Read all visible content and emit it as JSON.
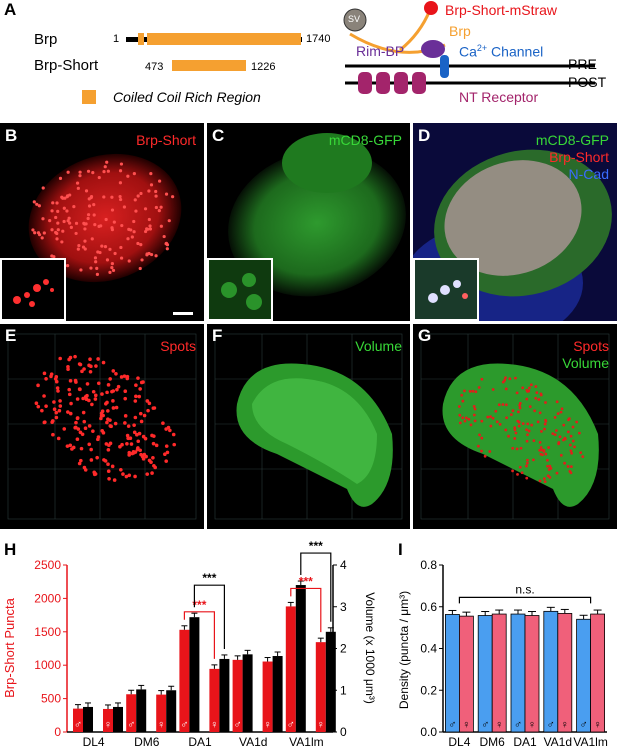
{
  "panelA": {
    "letter": "A",
    "brp_label": "Brp",
    "brp_start": "1",
    "brp_end": "1740",
    "short_label": "Brp-Short",
    "short_start": "473",
    "short_end": "1226",
    "legend_label": "Coiled Coil Rich Region",
    "sv": "SV",
    "mstraw": "Brp-Short-mStraw",
    "brp_syn": "Brp",
    "rimbp": "Rim-BP",
    "ca_prefix": "Ca",
    "ca_sup": "2+",
    "ca_suffix": " Channel",
    "pre": "PRE",
    "post": "POST",
    "ntr": "NT Receptor",
    "orange": "#f5a030",
    "purple": "#6a2f98",
    "blue": "#1a63c6",
    "red": "#e8141a",
    "maroon": "#a3246b"
  },
  "micro": {
    "B": {
      "letter": "B",
      "labels": [
        "Brp-Short"
      ],
      "colors": [
        "#ff2a2a"
      ]
    },
    "C": {
      "letter": "C",
      "labels": [
        "mCD8-GFP"
      ],
      "colors": [
        "#38d838"
      ]
    },
    "D": {
      "letter": "D",
      "labels": [
        "mCD8-GFP",
        "Brp-Short",
        "N-Cad"
      ],
      "colors": [
        "#38d838",
        "#ff2a2a",
        "#3a6cff"
      ]
    },
    "E": {
      "letter": "E",
      "labels": [
        "Spots"
      ],
      "colors": [
        "#ff2a2a"
      ]
    },
    "F": {
      "letter": "F",
      "labels": [
        "Volume"
      ],
      "colors": [
        "#38d838"
      ]
    },
    "G": {
      "letter": "G",
      "labels": [
        "Spots",
        "Volume"
      ],
      "colors": [
        "#ff2a2a",
        "#38d838"
      ]
    }
  },
  "chart_data": [
    {
      "panel": "H",
      "type": "bar",
      "categories": [
        "DL4",
        "DM6",
        "DA1",
        "VA1d",
        "VA1lm"
      ],
      "ylabel": "Brp-Short Puncta",
      "y2label": "Volume (x 1000 μm³)",
      "ylim": [
        0,
        2500
      ],
      "y2lim": [
        0,
        4
      ],
      "yticks": [
        "0",
        "500",
        "1000",
        "1500",
        "2000",
        "2500"
      ],
      "y2ticks": [
        "0",
        "1",
        "2",
        "3",
        "4"
      ],
      "sexes": [
        "♂",
        "♀"
      ],
      "series": [
        {
          "name": "Brp-Short Puncta",
          "color": "#e8141a",
          "axis": "left",
          "values_male": [
            350,
            565,
            1530,
            1080,
            1880
          ],
          "values_female": [
            345,
            560,
            945,
            1055,
            1345
          ]
        },
        {
          "name": "Volume",
          "color": "#000000",
          "axis": "right",
          "values_male": [
            0.6,
            1.02,
            2.75,
            1.86,
            3.52
          ],
          "values_female": [
            0.6,
            1.0,
            1.75,
            1.82,
            2.4
          ]
        }
      ],
      "significance": [
        {
          "label": "***",
          "color": "#e8141a",
          "category": "DA1",
          "pair": "puncta"
        },
        {
          "label": "***",
          "color": "#000000",
          "category": "DA1",
          "pair": "volume"
        },
        {
          "label": "***",
          "color": "#e8141a",
          "category": "VA1lm",
          "pair": "puncta"
        },
        {
          "label": "***",
          "color": "#000000",
          "category": "VA1lm",
          "pair": "volume"
        }
      ]
    },
    {
      "panel": "I",
      "type": "bar",
      "categories": [
        "DL4",
        "DM6",
        "DA1",
        "VA1d",
        "VA1lm"
      ],
      "ylabel": "Density (puncta / μm³)",
      "ylim": [
        0,
        0.8
      ],
      "yticks": [
        "0.0",
        "0.2",
        "0.4",
        "0.6",
        "0.8"
      ],
      "sexes": [
        "♂",
        "♀"
      ],
      "series": [
        {
          "name": "male",
          "color": "#4a9ef0",
          "values": [
            0.563,
            0.558,
            0.565,
            0.578,
            0.54
          ]
        },
        {
          "name": "female",
          "color": "#f0607a",
          "values": [
            0.555,
            0.565,
            0.558,
            0.568,
            0.565
          ]
        }
      ],
      "annotation": "n.s."
    }
  ],
  "panel_letters": {
    "H": "H",
    "I": "I"
  }
}
